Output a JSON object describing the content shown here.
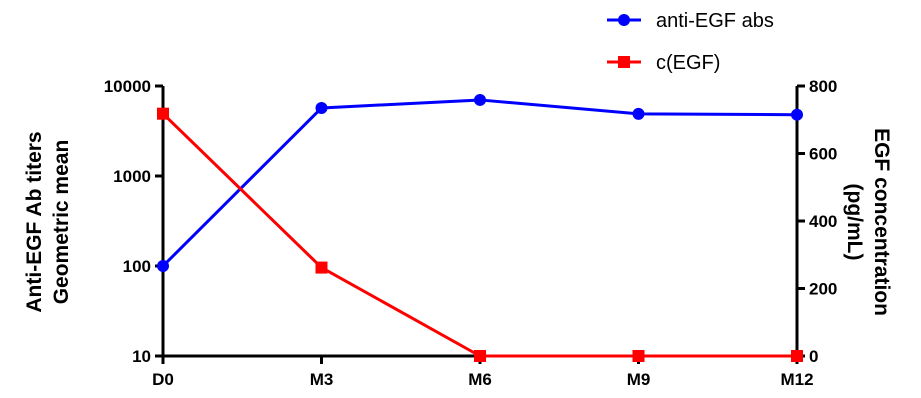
{
  "chart_data": {
    "type": "line",
    "categories": [
      "D0",
      "M3",
      "M6",
      "M9",
      "M12"
    ],
    "y_left": {
      "label_lines": [
        "Anti-EGF Ab titers",
        "Geometric mean"
      ],
      "scale": "log",
      "ylim": [
        10,
        10000
      ],
      "ticks": [
        "10",
        "100",
        "1000",
        "10000"
      ]
    },
    "y_right": {
      "label_lines": [
        "EGF concentration",
        "(pg/mL)"
      ],
      "scale": "linear",
      "ylim": [
        0,
        800
      ],
      "ticks": [
        "0",
        "200",
        "400",
        "600",
        "800"
      ]
    },
    "series": [
      {
        "name": "anti-EGF abs",
        "axis": "left",
        "color": "#0000ff",
        "marker": "circle",
        "values": [
          100,
          5700,
          7000,
          4900,
          4800
        ]
      },
      {
        "name": "c(EGF)",
        "axis": "right",
        "color": "#ff0000",
        "marker": "square",
        "values": [
          718,
          262,
          0,
          0,
          0
        ]
      }
    ],
    "legend_position": "top-right",
    "grid": false
  }
}
